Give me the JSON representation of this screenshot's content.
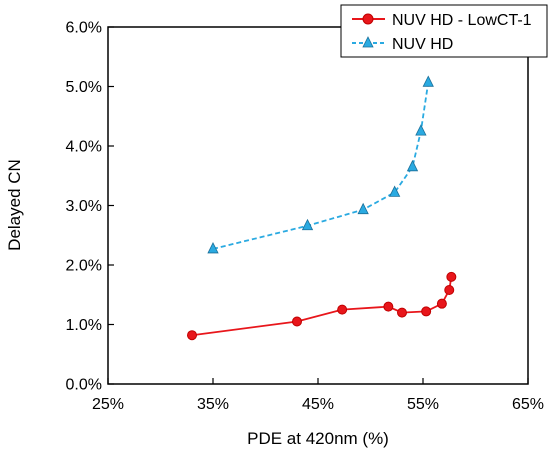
{
  "chart_data": {
    "type": "line",
    "title": "",
    "xlabel": "PDE at 420nm (%)",
    "ylabel": "Delayed CN",
    "xlim": [
      25,
      65
    ],
    "ylim": [
      0,
      6
    ],
    "x_ticks": [
      "25%",
      "35%",
      "45%",
      "55%",
      "65%"
    ],
    "y_ticks": [
      "0.0%",
      "1.0%",
      "2.0%",
      "3.0%",
      "4.0%",
      "5.0%",
      "6.0%"
    ],
    "x_tick_values": [
      25,
      35,
      45,
      55,
      65
    ],
    "y_tick_values": [
      0,
      1,
      2,
      3,
      4,
      5,
      6
    ],
    "grid": false,
    "legend_position": "top-right",
    "series": [
      {
        "name": "NUV HD - LowCT-1",
        "color": "#e8161b",
        "marker": "circle",
        "line_style": "solid",
        "x": [
          33.0,
          43.0,
          47.3,
          51.7,
          53.0,
          55.3,
          56.8,
          57.5,
          57.7
        ],
        "y": [
          0.82,
          1.05,
          1.25,
          1.3,
          1.2,
          1.22,
          1.35,
          1.58,
          1.8
        ]
      },
      {
        "name": "NUV HD",
        "color": "#2aaae1",
        "marker": "triangle",
        "line_style": "dashed",
        "x": [
          35.0,
          44.0,
          49.3,
          52.3,
          54.0,
          54.8,
          55.5
        ],
        "y": [
          2.27,
          2.66,
          2.93,
          3.22,
          3.65,
          4.25,
          5.07
        ]
      }
    ]
  }
}
